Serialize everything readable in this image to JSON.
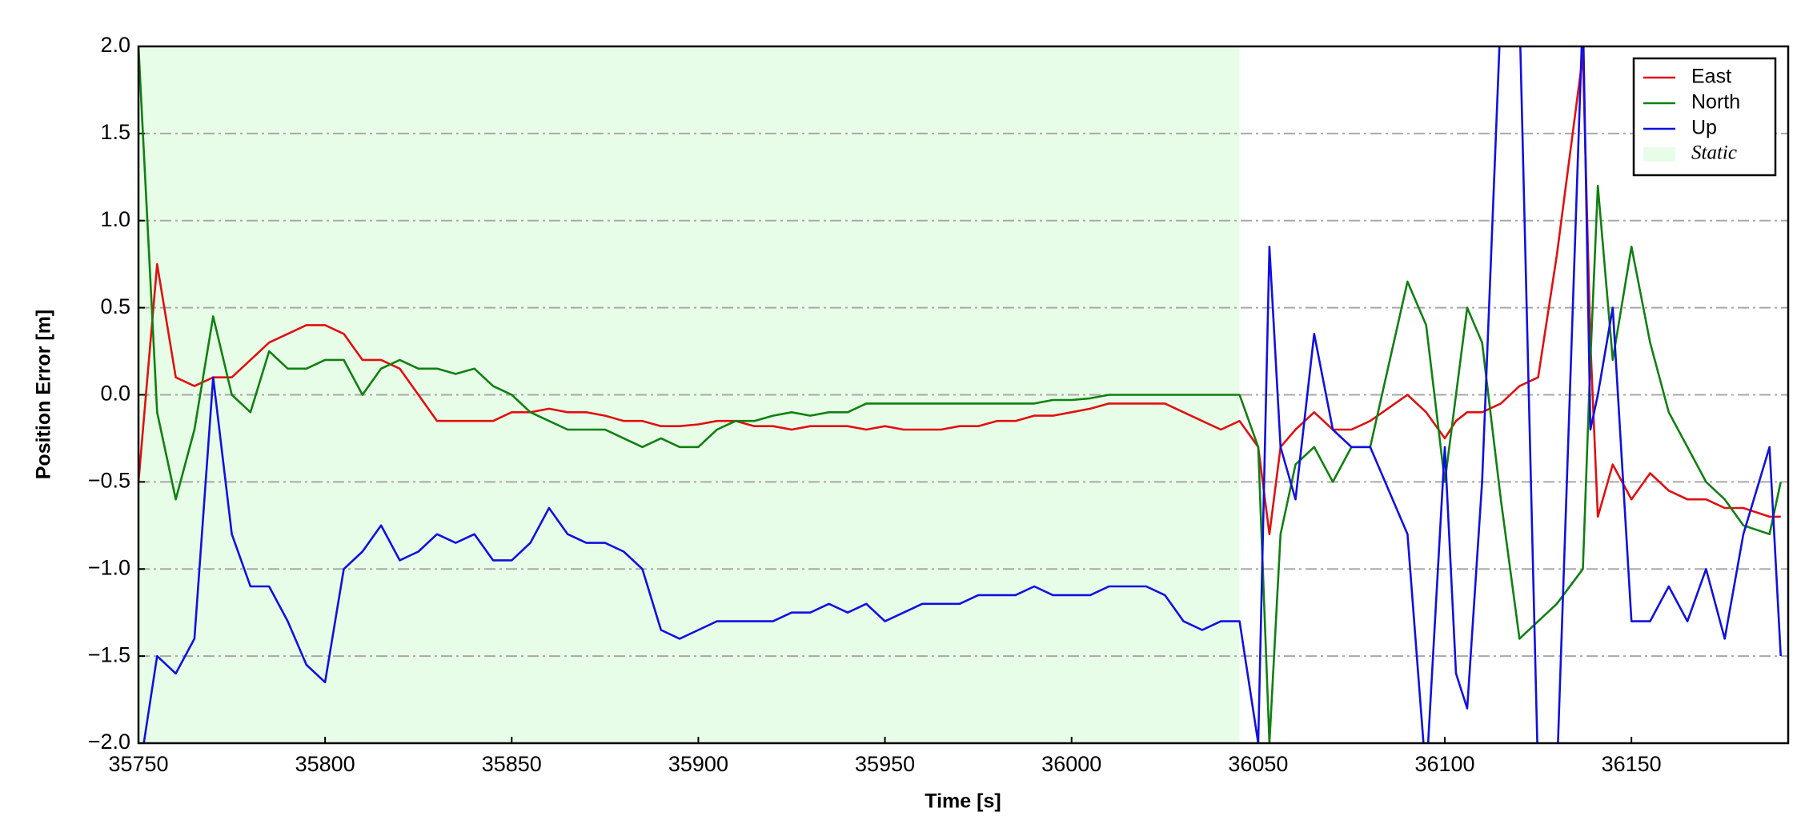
{
  "chart_data": {
    "type": "line",
    "xlabel": "Time [s]",
    "ylabel": "Position Error [m]",
    "shaded": {
      "name": "Static",
      "color": "#e8fde8",
      "range": [
        35750,
        36045
      ]
    },
    "xlim": [
      35750,
      36192
    ],
    "xticks": [
      35750,
      35800,
      35850,
      35900,
      35950,
      36000,
      36050,
      36100,
      36150
    ],
    "ylim": [
      -2,
      2
    ],
    "yticks": [
      {
        "value": -2,
        "label": "−2.0"
      },
      {
        "value": -1.5,
        "label": "−1.5"
      },
      {
        "value": -1,
        "label": "−1.0"
      },
      {
        "value": -0.5,
        "label": "−0.5"
      },
      {
        "value": 0,
        "label": "0.0"
      },
      {
        "value": 0.5,
        "label": "0.5"
      },
      {
        "value": 1,
        "label": "1.0"
      },
      {
        "value": 1.5,
        "label": "1.5"
      },
      {
        "value": 2,
        "label": "2.0"
      }
    ],
    "grid": true,
    "legend": "upper right",
    "x": [
      35750,
      35755,
      35760,
      35765,
      35770,
      35775,
      35780,
      35785,
      35790,
      35795,
      35800,
      35805,
      35810,
      35815,
      35820,
      35825,
      35830,
      35835,
      35840,
      35845,
      35850,
      35855,
      35860,
      35865,
      35870,
      35875,
      35880,
      35885,
      35890,
      35895,
      35900,
      35905,
      35910,
      35915,
      35920,
      35925,
      35930,
      35935,
      35940,
      35945,
      35950,
      35955,
      35960,
      35965,
      35970,
      35975,
      35980,
      35985,
      35990,
      35995,
      36000,
      36005,
      36010,
      36015,
      36020,
      36025,
      36030,
      36035,
      36040,
      36045,
      36050,
      36053,
      36056,
      36060,
      36065,
      36070,
      36075,
      36080,
      36090,
      36095,
      36100,
      36103,
      36106,
      36110,
      36115,
      36120,
      36125,
      36130,
      36137,
      36139,
      36141,
      36145,
      36150,
      36155,
      36160,
      36165,
      36170,
      36175,
      36180,
      36187,
      36190
    ],
    "series": [
      {
        "name": "East",
        "color": "#e01010",
        "values": [
          -0.5,
          0.75,
          0.1,
          0.05,
          0.1,
          0.1,
          0.2,
          0.3,
          0.35,
          0.4,
          0.4,
          0.35,
          0.2,
          0.2,
          0.15,
          0.0,
          -0.15,
          -0.15,
          -0.15,
          -0.15,
          -0.1,
          -0.1,
          -0.08,
          -0.1,
          -0.1,
          -0.12,
          -0.15,
          -0.15,
          -0.18,
          -0.18,
          -0.17,
          -0.15,
          -0.15,
          -0.18,
          -0.18,
          -0.2,
          -0.18,
          -0.18,
          -0.18,
          -0.2,
          -0.18,
          -0.2,
          -0.2,
          -0.2,
          -0.18,
          -0.18,
          -0.15,
          -0.15,
          -0.12,
          -0.12,
          -0.1,
          -0.08,
          -0.05,
          -0.05,
          -0.05,
          -0.05,
          -0.1,
          -0.15,
          -0.2,
          -0.15,
          -0.3,
          -0.8,
          -0.3,
          -0.2,
          -0.1,
          -0.2,
          -0.2,
          -0.15,
          0.0,
          -0.1,
          -0.25,
          -0.15,
          -0.1,
          -0.1,
          -0.05,
          0.05,
          0.1,
          0.8,
          1.95,
          0.3,
          -0.7,
          -0.4,
          -0.6,
          -0.45,
          -0.55,
          -0.6,
          -0.6,
          -0.65,
          -0.65,
          -0.7,
          -0.7
        ]
      },
      {
        "name": "North",
        "color": "#108010",
        "values": [
          2.0,
          -0.1,
          -0.6,
          -0.2,
          0.45,
          0.0,
          -0.1,
          0.25,
          0.15,
          0.15,
          0.2,
          0.2,
          0.0,
          0.15,
          0.2,
          0.15,
          0.15,
          0.12,
          0.15,
          0.05,
          0.0,
          -0.1,
          -0.15,
          -0.2,
          -0.2,
          -0.2,
          -0.25,
          -0.3,
          -0.25,
          -0.3,
          -0.3,
          -0.2,
          -0.15,
          -0.15,
          -0.12,
          -0.1,
          -0.12,
          -0.1,
          -0.1,
          -0.05,
          -0.05,
          -0.05,
          -0.05,
          -0.05,
          -0.05,
          -0.05,
          -0.05,
          -0.05,
          -0.05,
          -0.03,
          -0.03,
          -0.02,
          0.0,
          0.0,
          0.0,
          0.0,
          0.0,
          0.0,
          0.0,
          0.0,
          -0.3,
          -2.0,
          -0.8,
          -0.4,
          -0.3,
          -0.5,
          -0.3,
          -0.3,
          0.65,
          0.4,
          -0.5,
          0.0,
          0.5,
          0.3,
          -0.6,
          -1.4,
          -1.3,
          -1.2,
          -1.0,
          0.2,
          1.2,
          0.2,
          0.85,
          0.3,
          -0.1,
          -0.3,
          -0.5,
          -0.6,
          -0.75,
          -0.8,
          -0.5
        ]
      },
      {
        "name": "Up",
        "color": "#1010e0",
        "values": [
          -2.2,
          -1.5,
          -1.6,
          -1.4,
          0.1,
          -0.8,
          -1.1,
          -1.1,
          -1.3,
          -1.55,
          -1.65,
          -1.0,
          -0.9,
          -0.75,
          -0.95,
          -0.9,
          -0.8,
          -0.85,
          -0.8,
          -0.95,
          -0.95,
          -0.85,
          -0.65,
          -0.8,
          -0.85,
          -0.85,
          -0.9,
          -1.0,
          -1.35,
          -1.4,
          -1.35,
          -1.3,
          -1.3,
          -1.3,
          -1.3,
          -1.25,
          -1.25,
          -1.2,
          -1.25,
          -1.2,
          -1.3,
          -1.25,
          -1.2,
          -1.2,
          -1.2,
          -1.15,
          -1.15,
          -1.15,
          -1.1,
          -1.15,
          -1.15,
          -1.15,
          -1.1,
          -1.1,
          -1.1,
          -1.15,
          -1.3,
          -1.35,
          -1.3,
          -1.3,
          -2.0,
          0.85,
          -0.3,
          -0.6,
          0.35,
          -0.2,
          -0.3,
          -0.3,
          -0.8,
          -2.2,
          -0.3,
          -1.6,
          -1.8,
          -0.5,
          2.2,
          2.2,
          -2.2,
          -2.2,
          2.2,
          -0.2,
          0.0,
          0.5,
          -1.3,
          -1.3,
          -1.1,
          -1.3,
          -1.0,
          -1.4,
          -0.8,
          -0.3,
          -1.5
        ]
      }
    ]
  }
}
